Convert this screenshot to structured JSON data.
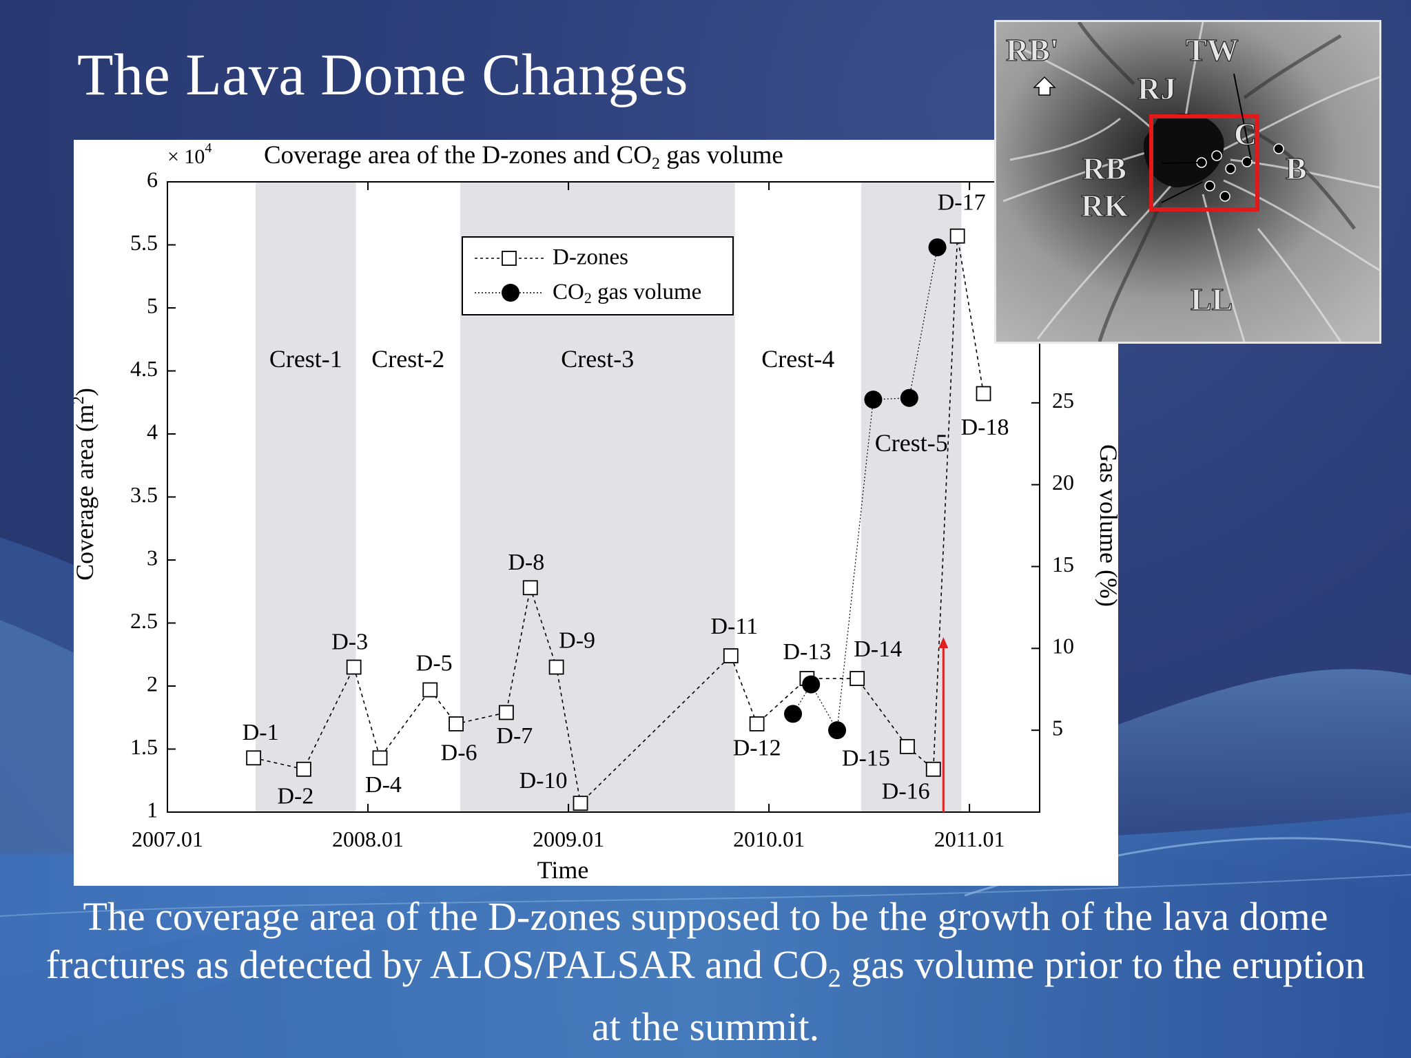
{
  "slide": {
    "title": "The Lava Dome Changes",
    "caption_parts": [
      "The coverage area of the D-zones supposed to be the growth of the lava dome fractures as detected by ALOS/PALSAR and CO",
      "2",
      " gas volume prior to the eruption at the summit."
    ]
  },
  "chart_data": {
    "type": "line",
    "title_parts": [
      "Coverage area of the D-zones and CO",
      "2",
      " gas volume"
    ],
    "xlabel": "Time",
    "ylabel_parts": [
      "Coverage area (m",
      "2",
      ")"
    ],
    "y_exponent_parts": [
      "× 10",
      "4"
    ],
    "y2label": "Gas volume (%)",
    "xlim": [
      2007.0,
      2011.35
    ],
    "ylim": [
      1,
      6
    ],
    "y2lim": [
      0,
      38.5
    ],
    "x_ticks": [
      {
        "value": 2007.0,
        "label": "2007.01"
      },
      {
        "value": 2008.0,
        "label": "2008.01"
      },
      {
        "value": 2009.0,
        "label": "2009.01"
      },
      {
        "value": 2010.0,
        "label": "2010.01"
      },
      {
        "value": 2011.0,
        "label": "2011.01"
      }
    ],
    "y_ticks": [
      {
        "value": 1,
        "label": "1"
      },
      {
        "value": 1.5,
        "label": "1.5"
      },
      {
        "value": 2,
        "label": "2"
      },
      {
        "value": 2.5,
        "label": "2.5"
      },
      {
        "value": 3,
        "label": "3"
      },
      {
        "value": 3.5,
        "label": "3.5"
      },
      {
        "value": 4,
        "label": "4"
      },
      {
        "value": 4.5,
        "label": "4.5"
      },
      {
        "value": 5,
        "label": "5"
      },
      {
        "value": 5.5,
        "label": "5.5"
      },
      {
        "value": 6,
        "label": "6"
      }
    ],
    "y2_ticks": [
      {
        "value": 5,
        "label": "5"
      },
      {
        "value": 10,
        "label": "10"
      },
      {
        "value": 15,
        "label": "15"
      },
      {
        "value": 20,
        "label": "20"
      },
      {
        "value": 25,
        "label": "25"
      }
    ],
    "crest_periods": [
      {
        "name": "Crest-1",
        "start": 2007.44,
        "end": 2007.94,
        "shaded": true
      },
      {
        "name": "Crest-2",
        "start": 2007.94,
        "end": 2008.46,
        "shaded": false
      },
      {
        "name": "Crest-3",
        "start": 2008.46,
        "end": 2009.83,
        "shaded": true
      },
      {
        "name": "Crest-4",
        "start": 2009.83,
        "end": 2010.46,
        "shaded": false
      },
      {
        "name": "Crest-5",
        "start": 2010.46,
        "end": 2010.96,
        "shaded": true
      }
    ],
    "series": [
      {
        "name": "D-zones",
        "axis": "left",
        "marker": "open-square",
        "points": [
          {
            "label": "D-1",
            "x": 2007.43,
            "y": 1.43
          },
          {
            "label": "D-2",
            "x": 2007.68,
            "y": 1.34
          },
          {
            "label": "D-3",
            "x": 2007.93,
            "y": 2.15
          },
          {
            "label": "D-4",
            "x": 2008.06,
            "y": 1.43
          },
          {
            "label": "D-5",
            "x": 2008.31,
            "y": 1.97
          },
          {
            "label": "D-6",
            "x": 2008.44,
            "y": 1.7
          },
          {
            "label": "D-7",
            "x": 2008.69,
            "y": 1.79
          },
          {
            "label": "D-8",
            "x": 2008.81,
            "y": 2.78
          },
          {
            "label": "D-9",
            "x": 2008.94,
            "y": 2.15
          },
          {
            "label": "D-10",
            "x": 2009.06,
            "y": 1.07
          },
          {
            "label": "D-11",
            "x": 2009.81,
            "y": 2.24
          },
          {
            "label": "D-12",
            "x": 2009.94,
            "y": 1.7
          },
          {
            "label": "D-13",
            "x": 2010.19,
            "y": 2.06
          },
          {
            "label": "D-14",
            "x": 2010.44,
            "y": 2.06
          },
          {
            "label": "D-15",
            "x": 2010.69,
            "y": 1.52
          },
          {
            "label": "D-16",
            "x": 2010.82,
            "y": 1.34
          },
          {
            "label": "D-17",
            "x": 2010.94,
            "y": 5.57
          },
          {
            "label": "D-18",
            "x": 2011.07,
            "y": 4.32
          }
        ]
      },
      {
        "name": "CO2 gas volume",
        "legend_parts": [
          "CO",
          "2",
          " gas volume"
        ],
        "axis": "right",
        "marker": "filled-circle",
        "points": [
          {
            "x": 2010.12,
            "y": 6.0
          },
          {
            "x": 2010.21,
            "y": 7.8
          },
          {
            "x": 2010.34,
            "y": 5.0
          },
          {
            "x": 2010.52,
            "y": 25.2
          },
          {
            "x": 2010.7,
            "y": 25.3
          },
          {
            "x": 2010.84,
            "y": 34.5
          }
        ]
      }
    ],
    "eruption_marker": {
      "x": 2010.87,
      "color": "#e02020"
    },
    "legend_position": "top-center"
  },
  "inset_map": {
    "labels": [
      "RB'",
      "TW",
      "RJ",
      "RB",
      "C",
      "B",
      "RK",
      "LL"
    ],
    "highlight_color": "#e01a1a"
  }
}
